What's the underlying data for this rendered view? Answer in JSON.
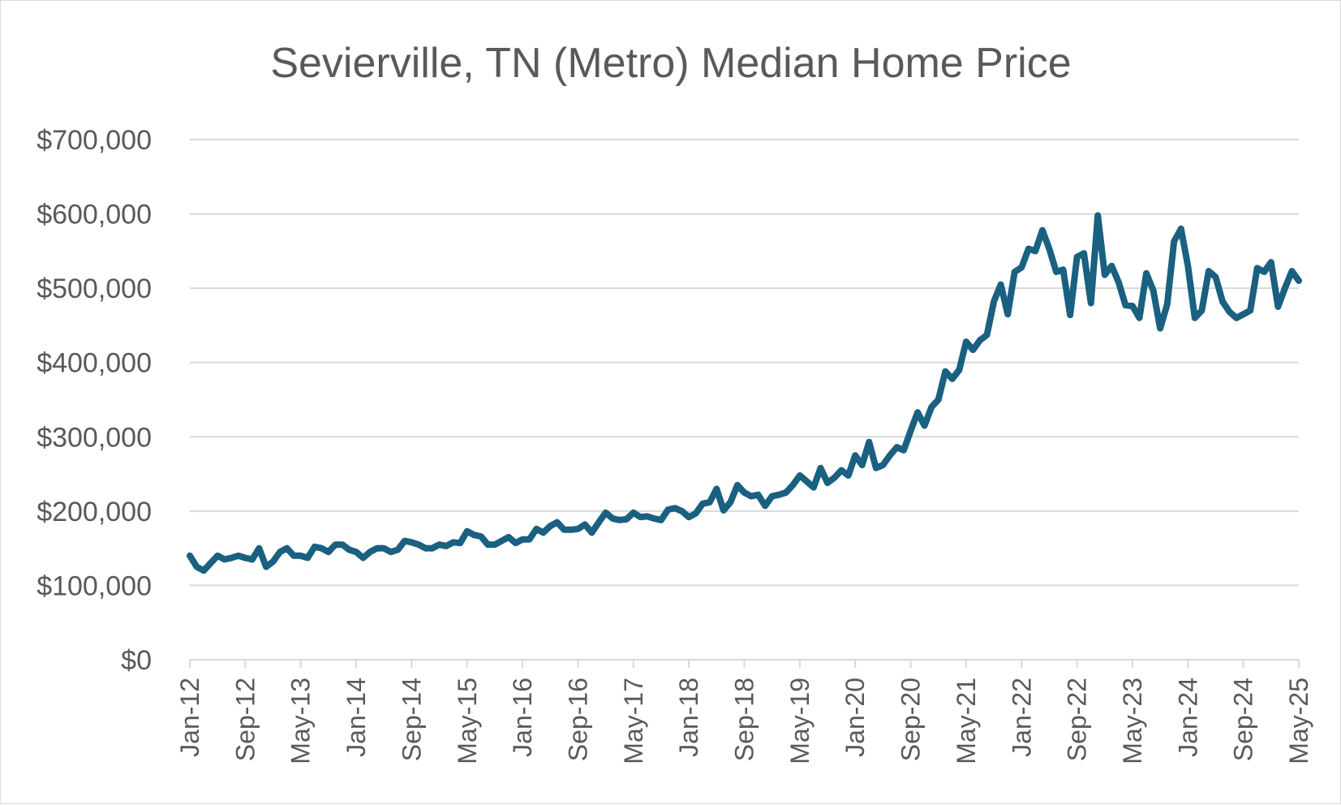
{
  "chart_data": {
    "type": "line",
    "title": "Sevierville, TN (Metro) Median Home Price",
    "xlabel": "",
    "ylabel": "",
    "ylim": [
      0,
      700000
    ],
    "yticks": [
      0,
      100000,
      200000,
      300000,
      400000,
      500000,
      600000,
      700000
    ],
    "ytick_labels": [
      "$0",
      "$100,000",
      "$200,000",
      "$300,000",
      "$400,000",
      "$500,000",
      "$600,000",
      "$700,000"
    ],
    "xtick_labels": [
      "Jan-12",
      "Sep-12",
      "May-13",
      "Jan-14",
      "Sep-14",
      "May-15",
      "Jan-16",
      "Sep-16",
      "May-17",
      "Jan-18",
      "Sep-18",
      "May-19",
      "Jan-20",
      "Sep-20",
      "May-21",
      "Jan-22",
      "Sep-22",
      "May-23",
      "Jan-24",
      "Sep-24",
      "May-25"
    ],
    "grid": true,
    "legend": "none",
    "x_start": "Jan-12",
    "x_end": "May-25",
    "series_color": "#1a6080",
    "series": [
      {
        "values": [
          140000,
          125000,
          120000,
          130000,
          140000,
          135000,
          137000,
          140000,
          137000,
          135000,
          150000,
          125000,
          132000,
          145000,
          150000,
          140000,
          140000,
          137000,
          152000,
          150000,
          145000,
          155000,
          155000,
          148000,
          145000,
          137000,
          145000,
          150000,
          150000,
          145000,
          148000,
          160000,
          158000,
          155000,
          150000,
          150000,
          155000,
          153000,
          158000,
          157000,
          173000,
          168000,
          166000,
          155000,
          155000,
          160000,
          165000,
          157000,
          162000,
          162000,
          176000,
          171000,
          180000,
          185000,
          175000,
          175000,
          176000,
          182000,
          171000,
          185000,
          198000,
          190000,
          188000,
          189000,
          198000,
          192000,
          193000,
          190000,
          188000,
          202000,
          204000,
          200000,
          192000,
          197000,
          210000,
          212000,
          230000,
          201000,
          212000,
          235000,
          225000,
          220000,
          222000,
          207000,
          220000,
          222000,
          225000,
          235000,
          248000,
          240000,
          232000,
          258000,
          238000,
          245000,
          255000,
          248000,
          275000,
          262000,
          293000,
          258000,
          262000,
          275000,
          286000,
          282000,
          308000,
          333000,
          315000,
          340000,
          350000,
          388000,
          378000,
          390000,
          428000,
          417000,
          430000,
          437000,
          482000,
          505000,
          465000,
          522000,
          528000,
          553000,
          550000,
          578000,
          553000,
          522000,
          525000,
          464000,
          542000,
          547000,
          480000,
          598000,
          518000,
          530000,
          508000,
          477000,
          476000,
          460000,
          520000,
          497000,
          446000,
          478000,
          563000,
          580000,
          530000,
          460000,
          470000,
          523000,
          515000,
          482000,
          468000,
          460000,
          465000,
          470000,
          527000,
          522000,
          535000,
          475000,
          500000,
          523000,
          510000
        ]
      }
    ]
  }
}
